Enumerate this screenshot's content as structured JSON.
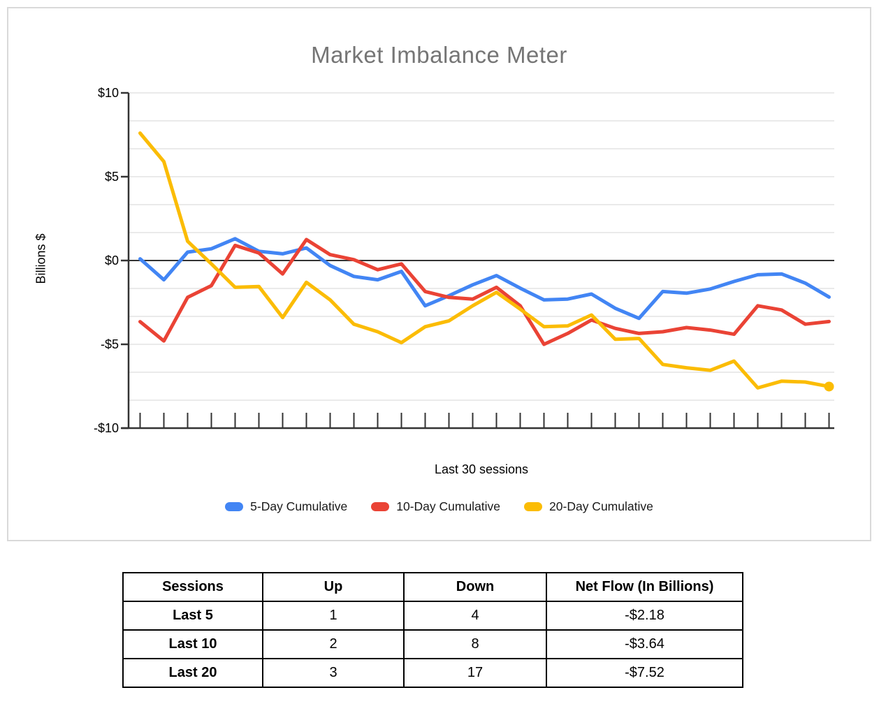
{
  "chart": {
    "title": "Market Imbalance Meter",
    "y_axis_label": "Billions $",
    "x_axis_label": "Last 30 sessions",
    "y_tick_labels": [
      "$10",
      "$5",
      "$0",
      "-$5",
      "-$10"
    ]
  },
  "chart_data": {
    "type": "line",
    "title": "Market Imbalance Meter",
    "xlabel": "Last 30 sessions",
    "ylabel": "Billions $",
    "x": [
      1,
      2,
      3,
      4,
      5,
      6,
      7,
      8,
      9,
      10,
      11,
      12,
      13,
      14,
      15,
      16,
      17,
      18,
      19,
      20,
      21,
      22,
      23,
      24,
      25,
      26,
      27,
      28,
      29,
      30
    ],
    "ylim": [
      -10,
      10
    ],
    "y_major_step": 5,
    "y_minor_divisions_per_major": 3,
    "grid": true,
    "legend_position": "bottom",
    "series": [
      {
        "name": "5-Day Cumulative",
        "color": "#4285F4",
        "values": [
          0.1,
          -1.15,
          0.5,
          0.7,
          1.3,
          0.55,
          0.4,
          0.75,
          -0.3,
          -0.95,
          -1.15,
          -0.65,
          -2.7,
          -2.1,
          -1.45,
          -0.9,
          -1.65,
          -2.35,
          -2.3,
          -2.0,
          -2.85,
          -3.45,
          -1.85,
          -1.95,
          -1.7,
          -1.25,
          -0.85,
          -0.8,
          -1.35,
          -2.18
        ],
        "end_marker": false
      },
      {
        "name": "10-Day Cumulative",
        "color": "#EA4335",
        "values": [
          -3.65,
          -4.8,
          -2.2,
          -1.5,
          0.9,
          0.45,
          -0.8,
          1.25,
          0.35,
          0.05,
          -0.55,
          -0.2,
          -1.85,
          -2.2,
          -2.3,
          -1.6,
          -2.7,
          -5.0,
          -4.35,
          -3.55,
          -4.05,
          -4.35,
          -4.25,
          -4.0,
          -4.15,
          -4.4,
          -2.7,
          -2.95,
          -3.8,
          -3.64
        ],
        "end_marker": false
      },
      {
        "name": "20-Day Cumulative",
        "color": "#FBBC04",
        "values": [
          7.6,
          5.9,
          1.15,
          -0.2,
          -1.6,
          -1.55,
          -3.4,
          -1.3,
          -2.35,
          -3.8,
          -4.25,
          -4.9,
          -3.95,
          -3.6,
          -2.7,
          -1.9,
          -2.9,
          -3.95,
          -3.9,
          -3.25,
          -4.7,
          -4.65,
          -6.2,
          -6.4,
          -6.55,
          -6.0,
          -7.6,
          -7.2,
          -7.25,
          -7.52
        ],
        "end_marker": true
      }
    ]
  },
  "table": {
    "headers": [
      "Sessions",
      "Up",
      "Down",
      "Net Flow (In Billions)"
    ],
    "rows": [
      [
        "Last 5",
        "1",
        "4",
        "-$2.18"
      ],
      [
        "Last 10",
        "2",
        "8",
        "-$3.64"
      ],
      [
        "Last 20",
        "3",
        "17",
        "-$7.52"
      ]
    ]
  },
  "colors": {
    "series_blue": "#4285F4",
    "series_red": "#EA4335",
    "series_yellow": "#FBBC04",
    "gridline": "#e3e3e3",
    "axis": "#333333",
    "title_gray": "#757575"
  }
}
